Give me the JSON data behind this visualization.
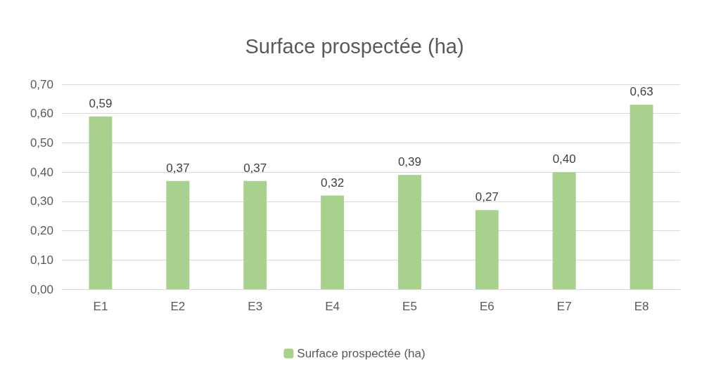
{
  "chart_data": {
    "type": "bar",
    "title": "Surface prospectée (ha)",
    "categories": [
      "E1",
      "E2",
      "E3",
      "E4",
      "E5",
      "E6",
      "E7",
      "E8"
    ],
    "series": [
      {
        "name": "Surface prospectée (ha)",
        "color": "#a9d18e",
        "values": [
          0.59,
          0.37,
          0.37,
          0.32,
          0.39,
          0.27,
          0.4,
          0.63
        ],
        "value_labels": [
          "0,59",
          "0,37",
          "0,37",
          "0,32",
          "0,39",
          "0,27",
          "0,40",
          "0,63"
        ]
      }
    ],
    "ylim": [
      0,
      0.7
    ],
    "yticks": [
      {
        "value": 0,
        "label": "0,00"
      },
      {
        "value": 0.1,
        "label": "0,10"
      },
      {
        "value": 0.2,
        "label": "0,20"
      },
      {
        "value": 0.3,
        "label": "0,30"
      },
      {
        "value": 0.4,
        "label": "0,40"
      },
      {
        "value": 0.5,
        "label": "0,50"
      },
      {
        "value": 0.6,
        "label": "0,60"
      },
      {
        "value": 0.7,
        "label": "0,70"
      }
    ],
    "grid": true,
    "legend": "bottom"
  }
}
